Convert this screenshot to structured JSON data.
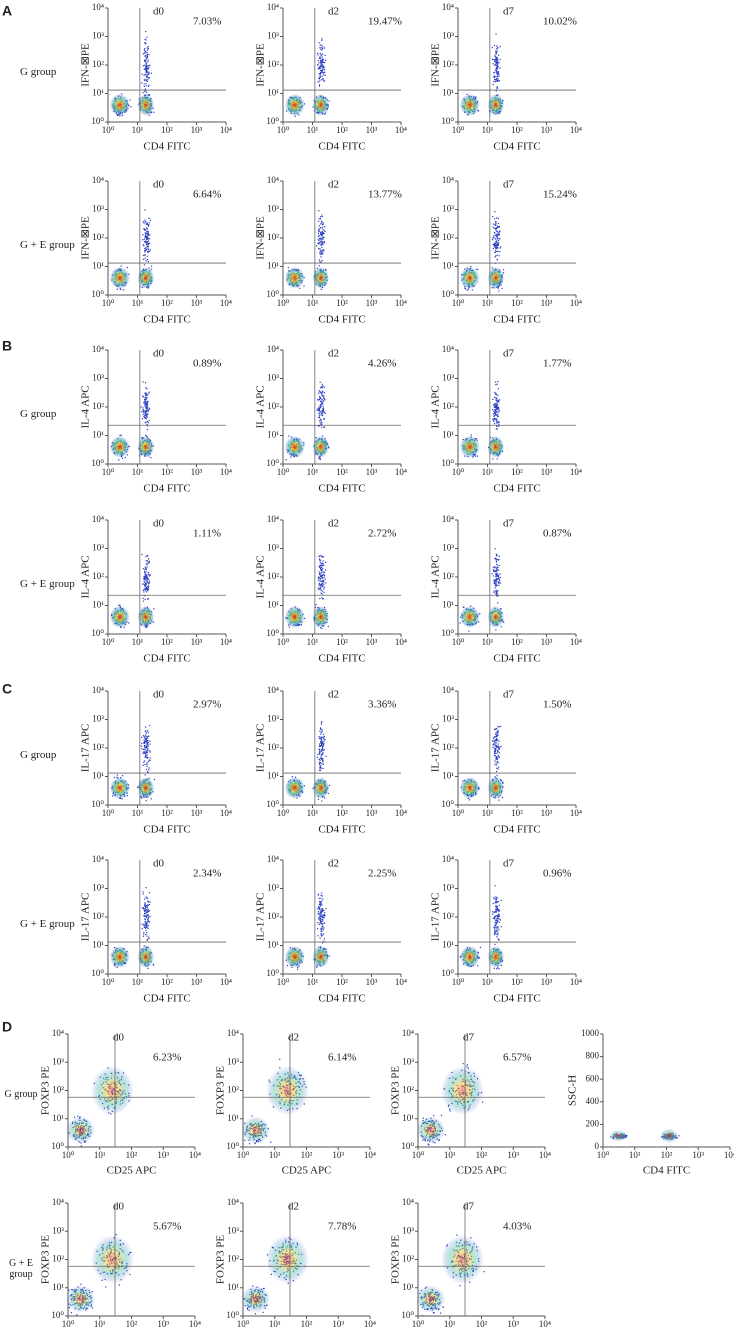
{
  "log_tick_labels": [
    "10⁰",
    "10¹",
    "10²",
    "10³",
    "10⁴"
  ],
  "linear_tick_labels": [
    "0",
    "200",
    "400",
    "600",
    "800",
    "1000"
  ],
  "sections": [
    {
      "letter": "A",
      "rows": [
        {
          "group": "G group",
          "plots": [
            {
              "day": "d0",
              "percent": "7.03%",
              "x_label": "CD4 FITC",
              "y_label": "IFN-⊠PE"
            },
            {
              "day": "d2",
              "percent": "19.47%",
              "x_label": "CD4 FITC",
              "y_label": "IFN-⊠PE"
            },
            {
              "day": "d7",
              "percent": "10.02%",
              "x_label": "CD4 FITC",
              "y_label": "IFN-⊠PE"
            }
          ]
        },
        {
          "group": "G + E group",
          "plots": [
            {
              "day": "d0",
              "percent": "6.64%",
              "x_label": "CD4 FITC",
              "y_label": "IFN-⊠PE"
            },
            {
              "day": "d2",
              "percent": "13.77%",
              "x_label": "CD4 FITC",
              "y_label": "IFN-⊠PE"
            },
            {
              "day": "d7",
              "percent": "15.24%",
              "x_label": "CD4 FITC",
              "y_label": "IFN-⊠PE"
            }
          ]
        }
      ]
    },
    {
      "letter": "B",
      "rows": [
        {
          "group": "G group",
          "plots": [
            {
              "day": "d0",
              "percent": "0.89%",
              "x_label": "CD4 FITC",
              "y_label": "IL-4 APC"
            },
            {
              "day": "d2",
              "percent": "4.26%",
              "x_label": "CD4 FITC",
              "y_label": "IL-4 APC"
            },
            {
              "day": "d7",
              "percent": "1.77%",
              "x_label": "CD4 FITC",
              "y_label": "IL-4 APC"
            }
          ]
        },
        {
          "group": "G + E group",
          "plots": [
            {
              "day": "d0",
              "percent": "1.11%",
              "x_label": "CD4 FITC",
              "y_label": "IL-4 APC"
            },
            {
              "day": "d2",
              "percent": "2.72%",
              "x_label": "CD4 FITC",
              "y_label": "IL-4 APC"
            },
            {
              "day": "d7",
              "percent": "0.87%",
              "x_label": "CD4 FITC",
              "y_label": "IL-4 APC"
            }
          ]
        }
      ]
    },
    {
      "letter": "C",
      "rows": [
        {
          "group": "G group",
          "plots": [
            {
              "day": "d0",
              "percent": "2.97%",
              "x_label": "CD4 FITC",
              "y_label": "IL-17 APC"
            },
            {
              "day": "d2",
              "percent": "3.36%",
              "x_label": "CD4 FITC",
              "y_label": "IL-17 APC"
            },
            {
              "day": "d7",
              "percent": "1.50%",
              "x_label": "CD4 FITC",
              "y_label": "IL-17 APC"
            }
          ]
        },
        {
          "group": "G + E group",
          "plots": [
            {
              "day": "d0",
              "percent": "2.34%",
              "x_label": "CD4 FITC",
              "y_label": "IL-17 APC"
            },
            {
              "day": "d2",
              "percent": "2.25%",
              "x_label": "CD4 FITC",
              "y_label": "IL-17 APC"
            },
            {
              "day": "d7",
              "percent": "0.96%",
              "x_label": "CD4 FITC",
              "y_label": "IL-17 APC"
            }
          ]
        }
      ]
    },
    {
      "letter": "D",
      "rows": [
        {
          "group": "G group",
          "plots": [
            {
              "day": "d0",
              "percent": "6.23%",
              "x_label": "CD25 APC",
              "y_label": "FOXP3 PE"
            },
            {
              "day": "d2",
              "percent": "6.14%",
              "x_label": "CD25 APC",
              "y_label": "FOXP3 PE"
            },
            {
              "day": "d7",
              "percent": "6.57%",
              "x_label": "CD25 APC",
              "y_label": "FOXP3 PE"
            },
            {
              "x_label": "CD4 FITC",
              "y_label": "SSC-H",
              "linear_y": true
            }
          ]
        },
        {
          "group": "G + E group",
          "plots": [
            {
              "day": "d0",
              "percent": "5.67%",
              "y_label": "FOXP3 PE"
            },
            {
              "day": "d2",
              "percent": "7.78%",
              "y_label": "FOXP3 PE"
            },
            {
              "day": "d7",
              "percent": "4.03%",
              "y_label": "FOXP3 PE"
            }
          ]
        }
      ]
    }
  ]
}
